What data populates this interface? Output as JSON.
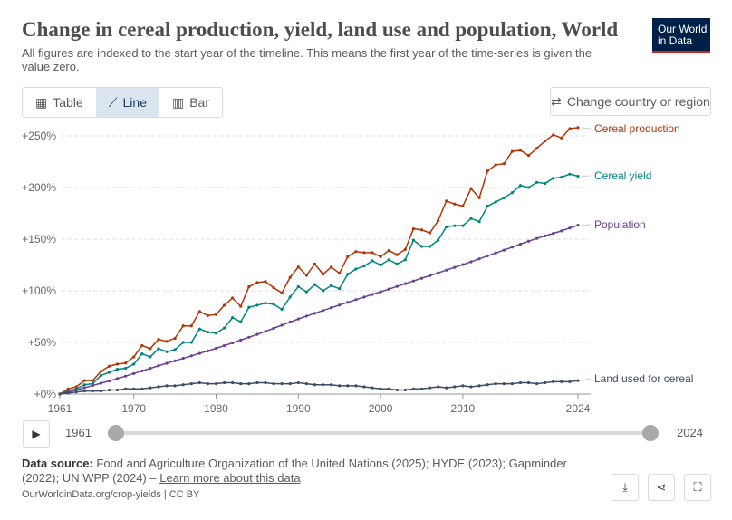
{
  "header": {
    "title": "Change in cereal production, yield, land use and population, World",
    "subtitle": "All figures are indexed to the start year of the timeline. This means the first year of the time-series is given the value zero.",
    "logo_line1": "Our World",
    "logo_line2": "in Data"
  },
  "tabs": [
    {
      "label": "Table",
      "icon": "table-icon"
    },
    {
      "label": "Line",
      "icon": "line-chart-icon",
      "active": true
    },
    {
      "label": "Bar",
      "icon": "bar-chart-icon"
    }
  ],
  "change_button": {
    "label": "Change country or region",
    "icon": "swap-arrows-icon"
  },
  "timeline": {
    "start": "1961",
    "end": "2024",
    "play_icon": "play-icon"
  },
  "footer": {
    "source_label": "Data source:",
    "source_text": "Food and Agriculture Organization of the United Nations (2025); HYDE (2023); Gapminder (2022); UN WPP (2024) – ",
    "learn_more": "Learn more about this data",
    "url": "OurWorldinData.org/crop-yields | CC BY",
    "buttons": [
      "download-icon",
      "share-icon",
      "fullscreen-icon"
    ]
  },
  "chart_data": {
    "type": "line",
    "x_start": 1961,
    "x_end": 2024,
    "x_ticks": [
      "1961",
      "1970",
      "1980",
      "1990",
      "2000",
      "2010",
      "2024"
    ],
    "y_ticks": [
      "+0%",
      "+50%",
      "+100%",
      "+150%",
      "+200%",
      "+250%"
    ],
    "ylim": [
      0,
      250
    ],
    "grid": "horizontal dashed",
    "legend": "inline-right",
    "series": [
      {
        "name": "Cereal production",
        "color": "#b13507",
        "values": [
          0,
          5,
          7,
          13,
          13,
          22,
          27,
          29,
          30,
          36,
          47,
          44,
          53,
          51,
          54,
          66,
          66,
          80,
          76,
          77,
          86,
          93,
          85,
          104,
          108,
          109,
          103,
          98,
          113,
          123,
          115,
          126,
          116,
          123,
          117,
          133,
          138,
          137,
          137,
          133,
          139,
          135,
          140,
          160,
          159,
          156,
          168,
          187,
          184,
          182,
          199,
          190,
          216,
          222,
          223,
          235,
          236,
          231,
          238,
          245,
          251,
          248,
          257,
          258
        ]
      },
      {
        "name": "Cereal yield",
        "color": "#00847e",
        "values": [
          0,
          3,
          5,
          9,
          10,
          18,
          21,
          24,
          25,
          29,
          39,
          36,
          44,
          41,
          43,
          50,
          50,
          63,
          60,
          59,
          64,
          74,
          70,
          84,
          86,
          88,
          87,
          82,
          94,
          104,
          99,
          106,
          100,
          105,
          102,
          116,
          121,
          124,
          129,
          125,
          130,
          126,
          130,
          149,
          143,
          143,
          149,
          162,
          163,
          163,
          170,
          167,
          182,
          186,
          190,
          195,
          202,
          200,
          205,
          204,
          209,
          210,
          213,
          211
        ]
      },
      {
        "name": "Population",
        "color": "#6d3e91",
        "values": [
          0,
          1.9,
          4.0,
          6.1,
          8.3,
          10.5,
          12.7,
          15.0,
          17.4,
          19.9,
          22.4,
          24.9,
          27.4,
          29.8,
          32.2,
          34.6,
          37.0,
          39.4,
          41.8,
          44.3,
          46.9,
          49.6,
          52.3,
          55.0,
          57.8,
          60.7,
          63.7,
          66.7,
          69.7,
          72.7,
          75.5,
          78.2,
          80.9,
          83.6,
          86.2,
          88.8,
          91.4,
          93.9,
          96.5,
          99.0,
          101.6,
          104.2,
          106.9,
          109.5,
          112.1,
          114.7,
          117.4,
          120.0,
          122.7,
          125.4,
          128.1,
          130.9,
          133.8,
          136.6,
          139.4,
          142.3,
          145.2,
          148.0,
          150.7,
          153.2,
          155.6,
          158.0,
          160.8,
          163.5
        ]
      },
      {
        "name": "Land used for cereal",
        "color": "#3c4e66",
        "values": [
          0,
          1,
          2,
          3,
          3,
          3,
          4,
          4,
          5,
          5,
          5,
          6,
          7,
          8,
          8,
          9,
          10,
          11,
          10,
          10,
          11,
          11,
          10,
          10,
          11,
          11,
          10,
          10,
          10,
          11,
          10,
          9,
          9,
          9,
          8,
          8,
          8,
          7,
          6,
          5,
          5,
          4,
          4,
          5,
          5,
          6,
          7,
          6,
          7,
          8,
          7,
          8,
          9,
          10,
          10,
          10,
          11,
          11,
          10,
          11,
          12,
          12,
          12,
          13
        ]
      }
    ]
  }
}
